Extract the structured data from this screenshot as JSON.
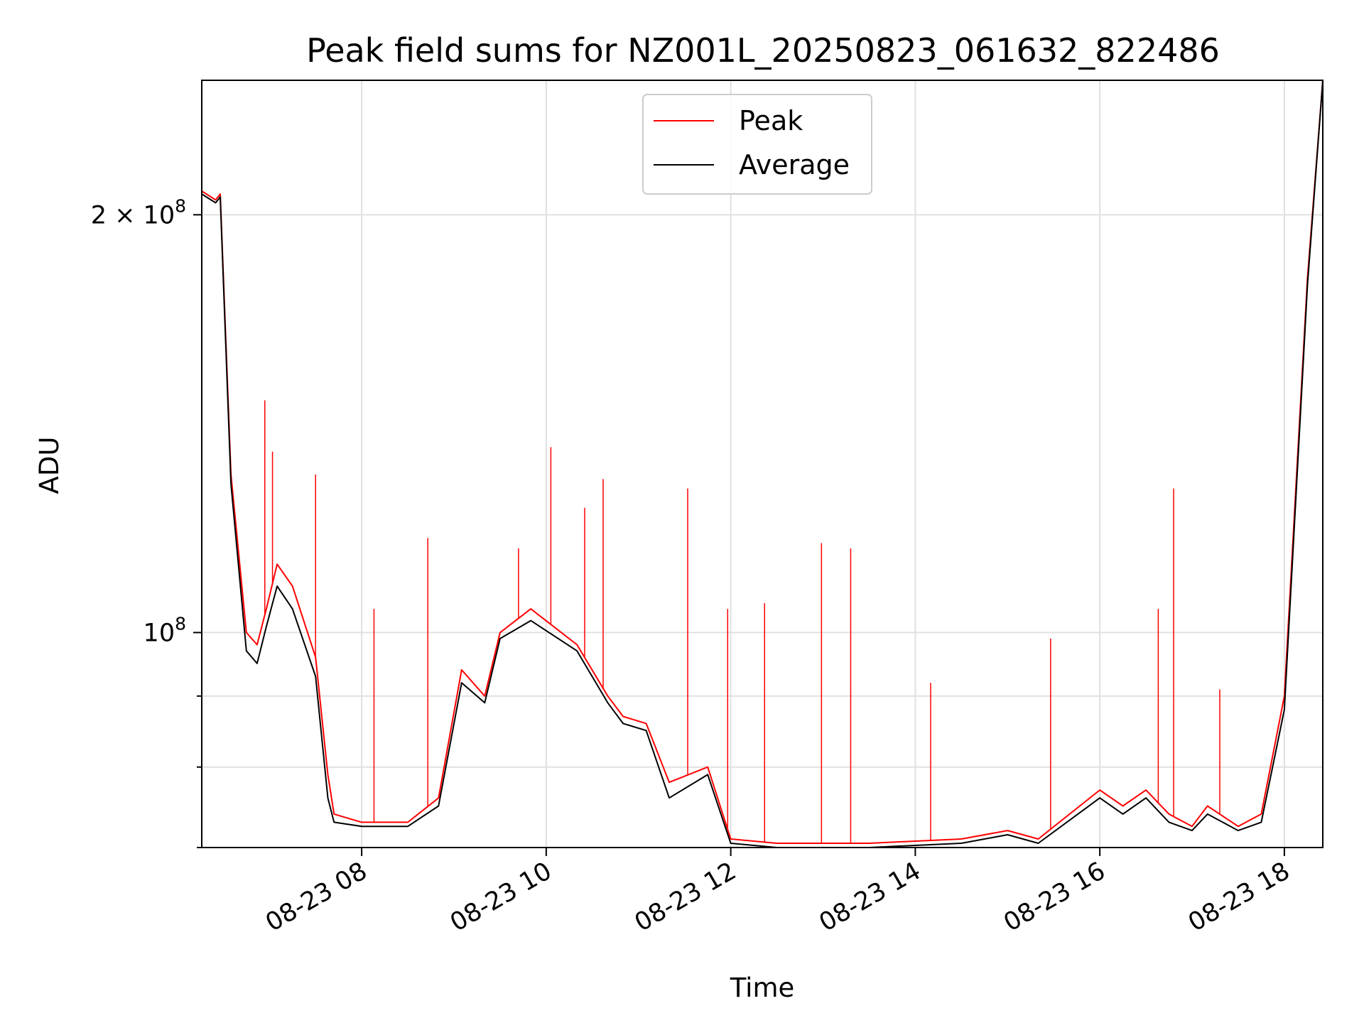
{
  "chart_data": {
    "type": "line",
    "title": "Peak field sums for NZ001L_20250823_061632_822486",
    "xlabel": "Time",
    "ylabel": "ADU",
    "y_scale": "log",
    "ylim": [
      70000000,
      250000000
    ],
    "xlim": [
      "2025-08-23 06:16",
      "2025-08-23 18:25"
    ],
    "x_ticks": [
      "08-23 08",
      "08-23 10",
      "08-23 12",
      "08-23 14",
      "08-23 16",
      "08-23 18"
    ],
    "x_tick_rotation_deg": 30,
    "y_ticks_labeled": [
      {
        "value": 100000000,
        "mantissa": "",
        "exponent": "8"
      },
      {
        "value": 200000000,
        "mantissa": "2",
        "exponent": "8"
      }
    ],
    "y_ticks_minor": [
      70000000,
      80000000,
      90000000
    ],
    "grid": true,
    "legend_placement": "upper center",
    "series": [
      {
        "name": "Peak",
        "color": "#ff0000",
        "x": [
          "2025-08-23 06:16",
          "2025-08-23 06:25",
          "2025-08-23 06:28",
          "2025-08-23 06:35",
          "2025-08-23 06:45",
          "2025-08-23 06:52",
          "2025-08-23 06:58",
          "2025-08-23 07:05",
          "2025-08-23 07:15",
          "2025-08-23 07:30",
          "2025-08-23 07:38",
          "2025-08-23 07:42",
          "2025-08-23 08:00",
          "2025-08-23 08:30",
          "2025-08-23 08:50",
          "2025-08-23 09:05",
          "2025-08-23 09:20",
          "2025-08-23 09:30",
          "2025-08-23 09:50",
          "2025-08-23 10:20",
          "2025-08-23 10:40",
          "2025-08-23 10:50",
          "2025-08-23 11:05",
          "2025-08-23 11:20",
          "2025-08-23 11:45",
          "2025-08-23 12:00",
          "2025-08-23 12:30",
          "2025-08-23 13:30",
          "2025-08-23 14:30",
          "2025-08-23 15:00",
          "2025-08-23 15:20",
          "2025-08-23 16:00",
          "2025-08-23 16:15",
          "2025-08-23 16:30",
          "2025-08-23 16:45",
          "2025-08-23 17:00",
          "2025-08-23 17:10",
          "2025-08-23 17:30",
          "2025-08-23 17:45",
          "2025-08-23 18:00",
          "2025-08-23 18:15",
          "2025-08-23 18:25"
        ],
        "values": [
          208000000,
          205000000,
          207000000,
          130000000,
          100000000,
          98000000,
          104000000,
          112000000,
          108000000,
          96000000,
          79000000,
          74000000,
          73000000,
          73000000,
          76000000,
          94000000,
          90000000,
          100000000,
          104000000,
          98000000,
          90000000,
          87000000,
          86000000,
          78000000,
          80000000,
          71000000,
          70500000,
          70500000,
          71000000,
          72000000,
          71000000,
          77000000,
          75000000,
          77000000,
          74000000,
          72500000,
          75000000,
          72500000,
          74000000,
          90000000,
          180000000,
          250000000
        ],
        "spikes": [
          [
            "2025-08-23 06:57",
            147000000
          ],
          [
            "2025-08-23 07:02",
            135000000
          ],
          [
            "2025-08-23 07:30",
            130000000
          ],
          [
            "2025-08-23 08:08",
            104000000
          ],
          [
            "2025-08-23 08:43",
            117000000
          ],
          [
            "2025-08-23 09:42",
            115000000
          ],
          [
            "2025-08-23 10:03",
            136000000
          ],
          [
            "2025-08-23 10:25",
            123000000
          ],
          [
            "2025-08-23 10:37",
            129000000
          ],
          [
            "2025-08-23 11:32",
            127000000
          ],
          [
            "2025-08-23 11:58",
            104000000
          ],
          [
            "2025-08-23 12:22",
            105000000
          ],
          [
            "2025-08-23 12:59",
            116000000
          ],
          [
            "2025-08-23 13:18",
            115000000
          ],
          [
            "2025-08-23 14:10",
            92000000
          ],
          [
            "2025-08-23 15:28",
            99000000
          ],
          [
            "2025-08-23 16:38",
            104000000
          ],
          [
            "2025-08-23 16:48",
            127000000
          ],
          [
            "2025-08-23 17:18",
            91000000
          ]
        ]
      },
      {
        "name": "Average",
        "color": "#000000",
        "x": [
          "2025-08-23 06:16",
          "2025-08-23 06:25",
          "2025-08-23 06:28",
          "2025-08-23 06:35",
          "2025-08-23 06:45",
          "2025-08-23 06:52",
          "2025-08-23 06:58",
          "2025-08-23 07:05",
          "2025-08-23 07:15",
          "2025-08-23 07:30",
          "2025-08-23 07:38",
          "2025-08-23 07:42",
          "2025-08-23 08:00",
          "2025-08-23 08:30",
          "2025-08-23 08:50",
          "2025-08-23 09:05",
          "2025-08-23 09:20",
          "2025-08-23 09:30",
          "2025-08-23 09:50",
          "2025-08-23 10:20",
          "2025-08-23 10:40",
          "2025-08-23 10:50",
          "2025-08-23 11:05",
          "2025-08-23 11:20",
          "2025-08-23 11:45",
          "2025-08-23 12:00",
          "2025-08-23 12:30",
          "2025-08-23 13:30",
          "2025-08-23 14:30",
          "2025-08-23 15:00",
          "2025-08-23 15:20",
          "2025-08-23 16:00",
          "2025-08-23 16:15",
          "2025-08-23 16:30",
          "2025-08-23 16:45",
          "2025-08-23 17:00",
          "2025-08-23 17:10",
          "2025-08-23 17:30",
          "2025-08-23 17:45",
          "2025-08-23 18:00",
          "2025-08-23 18:15",
          "2025-08-23 18:25"
        ],
        "values": [
          207000000,
          204000000,
          206000000,
          128000000,
          97000000,
          95000000,
          101000000,
          108000000,
          104000000,
          93000000,
          76000000,
          73000000,
          72500000,
          72500000,
          75000000,
          92000000,
          89000000,
          99000000,
          102000000,
          97000000,
          89000000,
          86000000,
          85000000,
          76000000,
          79000000,
          70500000,
          70000000,
          70000000,
          70500000,
          71500000,
          70500000,
          76000000,
          74000000,
          76000000,
          73000000,
          72000000,
          74000000,
          72000000,
          73000000,
          88000000,
          178000000,
          250000000
        ]
      }
    ]
  }
}
